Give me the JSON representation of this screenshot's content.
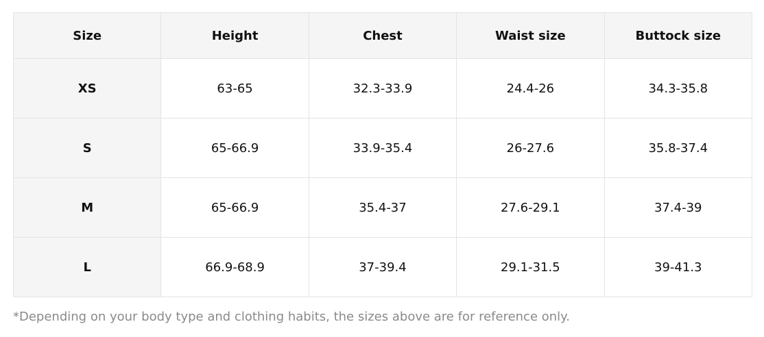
{
  "table": {
    "header": [
      "Size",
      "Height",
      "Chest",
      "Waist size",
      "Buttock size"
    ],
    "rows": [
      [
        "XS",
        "63-65",
        "32.3-33.9",
        "24.4-26",
        "34.3-35.8"
      ],
      [
        "S",
        "65-66.9",
        "33.9-35.4",
        "26-27.6",
        "35.8-37.4"
      ],
      [
        "M",
        "65-66.9",
        "35.4-37",
        "27.6-29.1",
        "37.4-39"
      ],
      [
        "L",
        "66.9-68.9",
        "37-39.4",
        "29.1-31.5",
        "39-41.3"
      ]
    ]
  },
  "note": "*Depending on your body type and clothing habits, the sizes above are for reference only."
}
